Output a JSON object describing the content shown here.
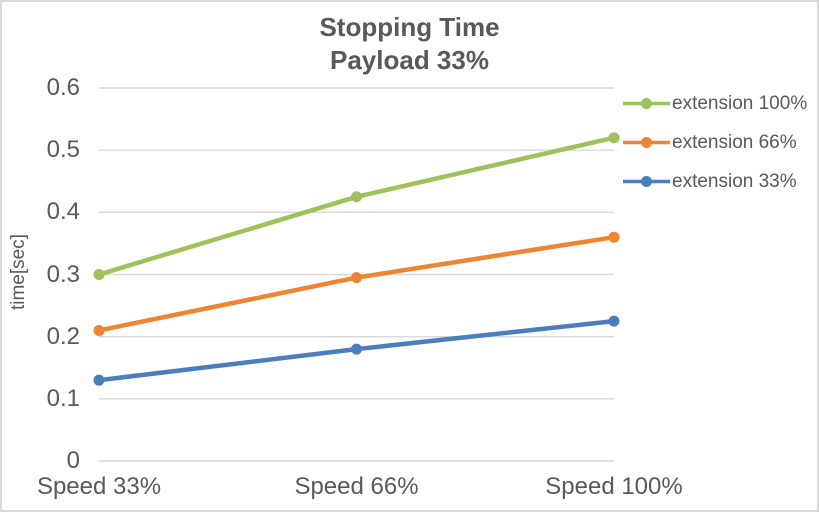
{
  "chart_data": {
    "type": "line",
    "title": "Stopping Time",
    "subtitle": "Payload 33%",
    "ylabel": "time[sec]",
    "xlabel": "",
    "categories": [
      "Speed 33%",
      "Speed 66%",
      "Speed 100%"
    ],
    "series": [
      {
        "name": "extension 100%",
        "color": "#9FC15C",
        "values": [
          0.3,
          0.425,
          0.52
        ]
      },
      {
        "name": "extension 66%",
        "color": "#EF8532",
        "values": [
          0.21,
          0.295,
          0.36
        ]
      },
      {
        "name": "extension 33%",
        "color": "#4A7EBD",
        "values": [
          0.13,
          0.18,
          0.225
        ]
      }
    ],
    "ylim": [
      0,
      0.6
    ],
    "ytick_labels": [
      "0",
      "0.1",
      "0.2",
      "0.3",
      "0.4",
      "0.5",
      "0.6"
    ],
    "grid": true,
    "legend_position": "right",
    "marker": "circle",
    "text_color": "#595959",
    "grid_color": "#D9D9D9",
    "border_color": "#D9D9D9",
    "background": "#FFFFFF"
  }
}
